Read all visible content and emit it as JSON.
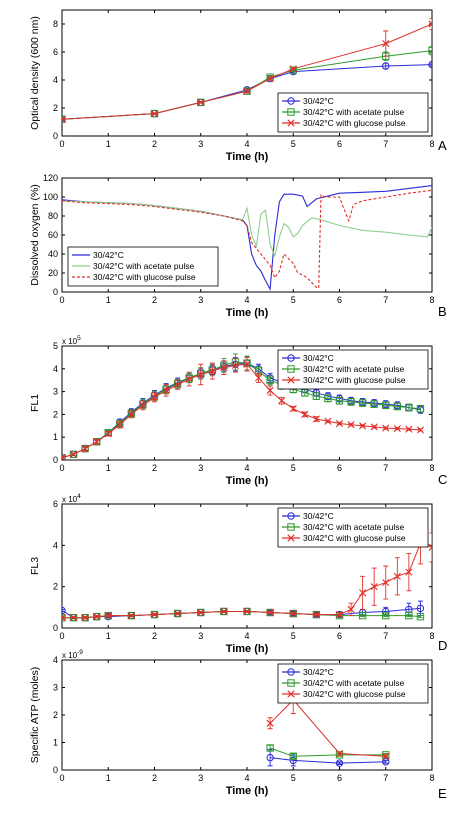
{
  "colors": {
    "blue": "#2b2bd8",
    "green": "#2f9a2f",
    "red": "#e0302a",
    "lightgreen": "#8fd08f",
    "axis": "#000000"
  },
  "chart_data": [
    {
      "type": "line",
      "panel_label": "A",
      "xlabel": "Time (h)",
      "ylabel": "Optical density (600 nm)",
      "xlim": [
        0,
        8
      ],
      "ylim": [
        0,
        9
      ],
      "xticks": [
        "0",
        "1",
        "2",
        "3",
        "4",
        "5",
        "6",
        "7",
        "8"
      ],
      "yticks": [
        "0",
        "2",
        "4",
        "6",
        "8"
      ],
      "legend_position": "bottom-right",
      "series": [
        {
          "name": "30/42°C",
          "marker": "o",
          "color": "#2b2bd8",
          "x": [
            0,
            2,
            3,
            4,
            4.5,
            5,
            7,
            8
          ],
          "y": [
            1.2,
            1.6,
            2.4,
            3.3,
            4.1,
            4.6,
            5.0,
            5.1
          ],
          "err": [
            0.05,
            0.05,
            0.05,
            0.1,
            0.1,
            0.1,
            0.2,
            0.1
          ]
        },
        {
          "name": "30/42°C with acetate pulse",
          "marker": "s",
          "color": "#2f9a2f",
          "x": [
            0,
            2,
            3,
            4,
            4.5,
            5,
            7,
            8
          ],
          "y": [
            1.2,
            1.6,
            2.4,
            3.2,
            4.2,
            4.7,
            5.7,
            6.1
          ],
          "err": [
            0.05,
            0.05,
            0.05,
            0.1,
            0.1,
            0.1,
            0.3,
            0.3
          ]
        },
        {
          "name": "30/42°C with glucose pulse",
          "marker": "x",
          "color": "#e0302a",
          "x": [
            0,
            2,
            3,
            4,
            4.5,
            5,
            7,
            8
          ],
          "y": [
            1.2,
            1.6,
            2.4,
            3.2,
            4.1,
            4.8,
            6.6,
            8.0
          ],
          "err": [
            0.05,
            0.05,
            0.05,
            0.1,
            0.1,
            0.1,
            0.9,
            0.4
          ]
        }
      ]
    },
    {
      "type": "line",
      "panel_label": "B",
      "xlabel": "Time (h)",
      "ylabel": "Dissolved oxygen (%)",
      "xlim": [
        0,
        8
      ],
      "ylim": [
        0,
        120
      ],
      "xticks": [
        "0",
        "1",
        "2",
        "3",
        "4",
        "5",
        "6",
        "7",
        "8"
      ],
      "yticks": [
        "0",
        "20",
        "40",
        "60",
        "80",
        "100",
        "120"
      ],
      "legend_position": "bottom-left",
      "series": [
        {
          "name": "30/42°C",
          "style": "solid",
          "color": "#2b2bd8",
          "x": [
            0,
            0.5,
            1,
            1.5,
            2,
            2.5,
            3,
            3.5,
            3.9,
            4.0,
            4.1,
            4.2,
            4.3,
            4.4,
            4.5,
            4.6,
            4.7,
            4.8,
            5.0,
            5.2,
            5.3,
            5.5,
            6,
            6.5,
            7,
            7.5,
            8
          ],
          "y": [
            97,
            95,
            94,
            93,
            91,
            88,
            85,
            80,
            76,
            70,
            40,
            28,
            22,
            12,
            3,
            60,
            95,
            103,
            103,
            101,
            90,
            98,
            104,
            105,
            106,
            109,
            112
          ]
        },
        {
          "name": "30/42°C with acetate pulse",
          "style": "solid",
          "color": "#8fd08f",
          "x": [
            0,
            0.5,
            1,
            1.5,
            2,
            2.5,
            3,
            3.5,
            3.9,
            4.0,
            4.1,
            4.2,
            4.3,
            4.4,
            4.5,
            4.6,
            4.7,
            4.8,
            4.9,
            5.0,
            5.1,
            5.2,
            5.4,
            5.6,
            6,
            6.5,
            7,
            7.5,
            7.9,
            8
          ],
          "y": [
            96,
            95,
            94,
            93,
            91,
            88,
            85,
            80,
            76,
            88,
            60,
            48,
            82,
            86,
            50,
            38,
            58,
            72,
            68,
            58,
            62,
            70,
            78,
            76,
            70,
            65,
            63,
            60,
            58,
            68
          ]
        },
        {
          "name": "30/42°C with glucose pulse",
          "style": "dashed",
          "color": "#e0302a",
          "x": [
            0,
            0.5,
            1,
            1.5,
            2,
            2.5,
            3,
            3.5,
            3.9,
            4.0,
            4.1,
            4.3,
            4.5,
            4.6,
            4.7,
            4.8,
            5.0,
            5.1,
            5.2,
            5.3,
            5.5,
            5.55,
            5.6,
            5.7,
            6,
            6.1,
            6.2,
            6.3,
            6.5,
            7,
            7.5,
            8
          ],
          "y": [
            96,
            94,
            93,
            92,
            90,
            87,
            84,
            80,
            75,
            70,
            52,
            40,
            28,
            15,
            22,
            40,
            30,
            20,
            18,
            15,
            5,
            4,
            102,
            100,
            100,
            87,
            75,
            92,
            96,
            100,
            104,
            107
          ]
        }
      ]
    },
    {
      "type": "line",
      "panel_label": "C",
      "xlabel": "Time (h)",
      "ylabel": "FL1",
      "axis_multiplier": "x 10^5",
      "xlim": [
        0,
        8
      ],
      "ylim": [
        0,
        5
      ],
      "xticks": [
        "0",
        "1",
        "2",
        "3",
        "4",
        "5",
        "6",
        "7",
        "8"
      ],
      "yticks": [
        "0",
        "1",
        "2",
        "3",
        "4",
        "5"
      ],
      "legend_position": "top-right",
      "series": [
        {
          "name": "30/42°C",
          "marker": "o",
          "color": "#2b2bd8",
          "x": [
            0,
            0.25,
            0.5,
            0.75,
            1,
            1.25,
            1.5,
            1.75,
            2,
            2.25,
            2.5,
            2.75,
            3,
            3.25,
            3.5,
            3.75,
            4,
            4.25,
            4.5,
            4.75,
            5,
            5.25,
            5.5,
            5.75,
            6,
            6.25,
            6.5,
            6.75,
            7,
            7.25,
            7.5,
            7.75
          ],
          "y": [
            0.1,
            0.25,
            0.5,
            0.8,
            1.2,
            1.65,
            2.1,
            2.5,
            2.85,
            3.15,
            3.4,
            3.6,
            3.8,
            3.95,
            4.1,
            4.2,
            4.25,
            4.0,
            3.6,
            3.4,
            3.25,
            3.1,
            2.95,
            2.8,
            2.7,
            2.6,
            2.55,
            2.5,
            2.45,
            2.4,
            2.3,
            2.2
          ],
          "err": [
            0.05,
            0.05,
            0.1,
            0.1,
            0.1,
            0.15,
            0.15,
            0.2,
            0.2,
            0.2,
            0.2,
            0.2,
            0.2,
            0.2,
            0.2,
            0.3,
            0.3,
            0.2,
            0.2,
            0.2,
            0.15,
            0.15,
            0.15,
            0.15,
            0.15,
            0.15,
            0.15,
            0.15,
            0.15,
            0.15,
            0.15,
            0.15
          ]
        },
        {
          "name": "30/42°C with acetate pulse",
          "marker": "s",
          "color": "#2f9a2f",
          "x": [
            0,
            0.25,
            0.5,
            0.75,
            1,
            1.25,
            1.5,
            1.75,
            2,
            2.25,
            2.5,
            2.75,
            3,
            3.25,
            3.5,
            3.75,
            4,
            4.25,
            4.5,
            4.75,
            5,
            5.25,
            5.5,
            5.75,
            6,
            6.25,
            6.5,
            6.75,
            7,
            7.25,
            7.5,
            7.75
          ],
          "y": [
            0.1,
            0.25,
            0.5,
            0.8,
            1.2,
            1.6,
            2.05,
            2.45,
            2.8,
            3.1,
            3.35,
            3.6,
            3.8,
            3.95,
            4.15,
            4.3,
            4.25,
            3.9,
            3.5,
            3.3,
            3.1,
            2.95,
            2.8,
            2.7,
            2.6,
            2.55,
            2.5,
            2.45,
            2.4,
            2.35,
            2.3,
            2.25
          ],
          "err": [
            0.05,
            0.05,
            0.1,
            0.1,
            0.1,
            0.15,
            0.15,
            0.2,
            0.2,
            0.2,
            0.2,
            0.2,
            0.25,
            0.25,
            0.3,
            0.35,
            0.3,
            0.2,
            0.2,
            0.2,
            0.15,
            0.15,
            0.15,
            0.15,
            0.15,
            0.15,
            0.15,
            0.15,
            0.15,
            0.15,
            0.15,
            0.15
          ]
        },
        {
          "name": "30/42°C with glucose pulse",
          "marker": "x",
          "color": "#e0302a",
          "x": [
            0,
            0.25,
            0.5,
            0.75,
            1,
            1.25,
            1.5,
            1.75,
            2,
            2.25,
            2.5,
            2.75,
            3,
            3.25,
            3.5,
            3.75,
            4,
            4.25,
            4.5,
            4.75,
            5,
            5.25,
            5.5,
            5.75,
            6,
            6.25,
            6.5,
            6.75,
            7,
            7.25,
            7.5,
            7.75
          ],
          "y": [
            0.1,
            0.25,
            0.5,
            0.8,
            1.15,
            1.55,
            2.0,
            2.4,
            2.75,
            3.05,
            3.3,
            3.55,
            3.75,
            3.9,
            4.05,
            4.15,
            4.2,
            3.6,
            3.05,
            2.6,
            2.25,
            2.0,
            1.8,
            1.7,
            1.6,
            1.55,
            1.5,
            1.45,
            1.4,
            1.38,
            1.35,
            1.32
          ],
          "err": [
            0.05,
            0.05,
            0.1,
            0.1,
            0.1,
            0.15,
            0.15,
            0.2,
            0.2,
            0.25,
            0.2,
            0.3,
            0.45,
            0.35,
            0.3,
            0.3,
            0.3,
            0.2,
            0.2,
            0.15,
            0.1,
            0.1,
            0.1,
            0.05,
            0.05,
            0.05,
            0.05,
            0.05,
            0.05,
            0.05,
            0.05,
            0.05
          ]
        }
      ]
    },
    {
      "type": "line",
      "panel_label": "D",
      "xlabel": "Time (h)",
      "ylabel": "FL3",
      "axis_multiplier": "x 10^4",
      "xlim": [
        0,
        8
      ],
      "ylim": [
        0,
        6
      ],
      "xticks": [
        "0",
        "1",
        "2",
        "3",
        "4",
        "5",
        "6",
        "7",
        "8"
      ],
      "yticks": [
        "0",
        "2",
        "4",
        "6"
      ],
      "legend_position": "top-right",
      "series": [
        {
          "name": "30/42°C",
          "marker": "o",
          "color": "#2b2bd8",
          "x": [
            0,
            0.25,
            0.5,
            0.75,
            1,
            1.5,
            2,
            2.5,
            3,
            3.5,
            4,
            4.5,
            5,
            5.5,
            6,
            6.5,
            7,
            7.5,
            7.75
          ],
          "y": [
            0.85,
            0.5,
            0.5,
            0.55,
            0.55,
            0.6,
            0.65,
            0.7,
            0.75,
            0.8,
            0.8,
            0.75,
            0.7,
            0.65,
            0.65,
            0.75,
            0.8,
            0.9,
            0.95
          ],
          "err": [
            0.05,
            0.05,
            0.05,
            0.05,
            0.05,
            0.05,
            0.05,
            0.05,
            0.05,
            0.05,
            0.05,
            0.1,
            0.1,
            0.1,
            0.1,
            0.15,
            0.2,
            0.3,
            0.35
          ]
        },
        {
          "name": "30/42°C with acetate pulse",
          "marker": "s",
          "color": "#2f9a2f",
          "x": [
            0,
            0.25,
            0.5,
            0.75,
            1,
            1.5,
            2,
            2.5,
            3,
            3.5,
            4,
            4.5,
            5,
            5.5,
            6,
            6.5,
            7,
            7.5,
            7.75
          ],
          "y": [
            0.5,
            0.5,
            0.5,
            0.55,
            0.6,
            0.6,
            0.65,
            0.7,
            0.75,
            0.8,
            0.8,
            0.75,
            0.7,
            0.65,
            0.6,
            0.6,
            0.6,
            0.6,
            0.55
          ],
          "err": [
            0.05,
            0.05,
            0.05,
            0.05,
            0.05,
            0.05,
            0.05,
            0.05,
            0.05,
            0.05,
            0.05,
            0.05,
            0.05,
            0.05,
            0.05,
            0.05,
            0.05,
            0.05,
            0.05
          ]
        },
        {
          "name": "30/42°C with glucose pulse",
          "marker": "x",
          "color": "#e0302a",
          "x": [
            0,
            0.25,
            0.5,
            0.75,
            1,
            1.5,
            2,
            2.5,
            3,
            3.5,
            4,
            4.5,
            5,
            5.5,
            6,
            6.25,
            6.5,
            6.75,
            7,
            7.25,
            7.5,
            7.75,
            8
          ],
          "y": [
            0.5,
            0.5,
            0.5,
            0.55,
            0.6,
            0.6,
            0.65,
            0.7,
            0.75,
            0.8,
            0.8,
            0.75,
            0.7,
            0.65,
            0.65,
            0.9,
            1.7,
            2.0,
            2.2,
            2.5,
            2.7,
            4.1,
            3.9
          ],
          "err": [
            0.05,
            0.05,
            0.05,
            0.05,
            0.05,
            0.05,
            0.05,
            0.05,
            0.05,
            0.05,
            0.05,
            0.05,
            0.05,
            0.05,
            0.1,
            0.3,
            0.8,
            0.9,
            0.8,
            0.9,
            0.9,
            1.0,
            0.7
          ]
        }
      ]
    },
    {
      "type": "line",
      "panel_label": "E",
      "xlabel": "Time (h)",
      "ylabel": "Specific ATP (moles)",
      "axis_multiplier": "x 10^-9",
      "xlim": [
        0,
        8
      ],
      "ylim": [
        0,
        4
      ],
      "xticks": [
        "0",
        "1",
        "2",
        "3",
        "4",
        "5",
        "6",
        "7",
        "8"
      ],
      "yticks": [
        "0",
        "1",
        "2",
        "3",
        "4"
      ],
      "legend_position": "top-right",
      "series": [
        {
          "name": "30/42°C",
          "marker": "o",
          "color": "#2b2bd8",
          "x": [
            4.5,
            5,
            6,
            7
          ],
          "y": [
            0.45,
            0.35,
            0.25,
            0.3
          ],
          "err": [
            0.3,
            0.2,
            0.05,
            0.05
          ]
        },
        {
          "name": "30/42°C with acetate pulse",
          "marker": "s",
          "color": "#2f9a2f",
          "x": [
            4.5,
            5,
            6,
            7
          ],
          "y": [
            0.8,
            0.5,
            0.55,
            0.55
          ],
          "err": [
            0.1,
            0.1,
            0.05,
            0.05
          ]
        },
        {
          "name": "30/42°C with glucose pulse",
          "marker": "x",
          "color": "#e0302a",
          "x": [
            4.5,
            5,
            6,
            7
          ],
          "y": [
            1.7,
            2.55,
            0.6,
            0.5
          ],
          "err": [
            0.2,
            0.5,
            0.05,
            0.05
          ]
        }
      ]
    }
  ]
}
